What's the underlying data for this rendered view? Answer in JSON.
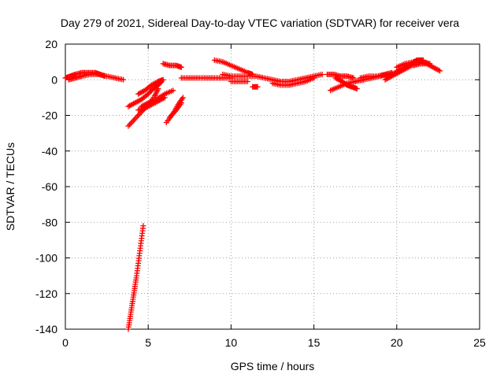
{
  "chart_data": {
    "type": "scatter",
    "title": "Day 279 of 2021, Sidereal Day-to-day VTEC variation (SDTVAR) for receiver vera",
    "xlabel": "GPS time / hours",
    "ylabel": "SDTVAR / TECUs",
    "xlim": [
      0,
      25
    ],
    "ylim": [
      -140,
      20
    ],
    "xticks": [
      0,
      5,
      10,
      15,
      20,
      25
    ],
    "yticks": [
      -140,
      -120,
      -100,
      -80,
      -60,
      -40,
      -20,
      0,
      20
    ],
    "grid": true,
    "marker": "plus",
    "color": "#ff0000",
    "series": [
      {
        "name": "seg1",
        "x": [
          0.0,
          0.3,
          0.6,
          1.0,
          1.4,
          1.8,
          2.1,
          2.4
        ],
        "y": [
          1,
          2,
          3,
          4,
          4,
          4,
          3,
          2
        ]
      },
      {
        "name": "seg2",
        "x": [
          0.2,
          0.6,
          1.0,
          1.5,
          2.0,
          2.5,
          3.0,
          3.5
        ],
        "y": [
          0,
          1,
          2,
          3,
          3,
          2,
          1,
          0
        ]
      },
      {
        "name": "seg3",
        "x": [
          3.8,
          4.2,
          4.6,
          5.0,
          5.4,
          5.6
        ],
        "y": [
          -26,
          -22,
          -18,
          -14,
          -9,
          -5
        ]
      },
      {
        "name": "seg4",
        "x": [
          3.8,
          4.2,
          4.6,
          5.0,
          5.3,
          5.6,
          5.8
        ],
        "y": [
          -15,
          -13,
          -11,
          -8,
          -5,
          -3,
          -1
        ]
      },
      {
        "name": "seg5",
        "x": [
          4.4,
          4.8,
          5.2,
          5.6,
          5.9
        ],
        "y": [
          -8,
          -6,
          -3,
          -1,
          0
        ]
      },
      {
        "name": "seg6",
        "x": [
          4.4,
          4.8,
          5.2,
          5.6,
          6.0
        ],
        "y": [
          -17,
          -16,
          -14,
          -12,
          -10
        ]
      },
      {
        "name": "seg7",
        "x": [
          4.6,
          5.0,
          5.5,
          6.0,
          6.5
        ],
        "y": [
          -15,
          -13,
          -11,
          -8,
          -6
        ]
      },
      {
        "name": "seg8",
        "x": [
          5.9,
          6.3,
          6.7,
          7.0
        ],
        "y": [
          9,
          8,
          8,
          7
        ]
      },
      {
        "name": "seg9",
        "x": [
          6.1,
          6.5,
          6.8,
          7.1
        ],
        "y": [
          -24,
          -19,
          -14,
          -10
        ]
      },
      {
        "name": "seg10",
        "x": [
          6.3,
          6.7,
          7.0
        ],
        "y": [
          -21,
          -17,
          -13
        ]
      },
      {
        "name": "seg11",
        "x": [
          7.0,
          7.5,
          8.0,
          8.5,
          9.0,
          9.5,
          10.0
        ],
        "y": [
          1,
          1,
          1,
          1,
          1,
          1,
          1
        ]
      },
      {
        "name": "seg12",
        "x": [
          9.0,
          9.5,
          10.0,
          10.5,
          11.0,
          11.3
        ],
        "y": [
          11,
          10,
          8,
          6,
          4,
          3
        ]
      },
      {
        "name": "seg13",
        "x": [
          9.5,
          10.0,
          10.5,
          11.0,
          11.5,
          12.0,
          12.5,
          13.0,
          13.5,
          14.0,
          14.5,
          15.0,
          15.5
        ],
        "y": [
          3,
          2,
          2,
          2,
          2,
          1,
          0,
          -1,
          -1,
          0,
          1,
          2,
          3
        ]
      },
      {
        "name": "seg14",
        "x": [
          10.0,
          10.5,
          11.0
        ],
        "y": [
          -1,
          -1,
          -1
        ]
      },
      {
        "name": "seg15",
        "x": [
          11.3,
          11.6
        ],
        "y": [
          -4,
          -4
        ]
      },
      {
        "name": "seg16",
        "x": [
          12.5,
          13.0,
          13.5,
          14.0,
          14.5,
          15.0
        ],
        "y": [
          -2,
          -3,
          -3,
          -2,
          -1,
          1
        ]
      },
      {
        "name": "seg17",
        "x": [
          15.8,
          16.2,
          16.6,
          17.0,
          17.4
        ],
        "y": [
          3,
          3,
          2,
          2,
          1
        ]
      },
      {
        "name": "seg18",
        "x": [
          16.0,
          16.5,
          17.0,
          17.5,
          18.0
        ],
        "y": [
          -6,
          -4,
          -2,
          -1,
          0
        ]
      },
      {
        "name": "seg19",
        "x": [
          16.3,
          16.7,
          17.0,
          17.3,
          17.6
        ],
        "y": [
          1,
          -1,
          -3,
          -4,
          -5
        ]
      },
      {
        "name": "seg20",
        "x": [
          17.5,
          18.0,
          18.5,
          19.0,
          19.4
        ],
        "y": [
          -1,
          0,
          1,
          2,
          3
        ]
      },
      {
        "name": "seg21",
        "x": [
          17.8,
          18.3,
          18.8,
          19.3,
          19.7
        ],
        "y": [
          1,
          2,
          2,
          3,
          4
        ]
      },
      {
        "name": "seg22",
        "x": [
          19.3,
          19.7,
          20.1,
          20.5,
          20.9
        ],
        "y": [
          0,
          2,
          4,
          6,
          8
        ]
      },
      {
        "name": "seg23",
        "x": [
          19.5,
          19.9,
          20.3,
          20.7,
          21.1
        ],
        "y": [
          2,
          4,
          6,
          8,
          10
        ]
      },
      {
        "name": "seg24",
        "x": [
          20.0,
          20.5,
          21.0,
          21.3,
          21.6
        ],
        "y": [
          7,
          9,
          10,
          11,
          11
        ]
      },
      {
        "name": "seg25",
        "x": [
          21.0,
          21.4,
          21.8,
          22.2,
          22.6
        ],
        "y": [
          8,
          9,
          9,
          7,
          5
        ]
      },
      {
        "name": "seg26",
        "x": [
          21.2,
          21.6,
          22.0
        ],
        "y": [
          11,
          10,
          9
        ]
      },
      {
        "name": "seg27",
        "x": [
          3.8,
          3.9,
          4.0,
          4.1,
          4.2,
          4.3,
          4.4,
          4.5,
          4.6,
          4.7
        ],
        "y": [
          -140,
          -134,
          -128,
          -122,
          -116,
          -110,
          -103,
          -96,
          -89,
          -82
        ]
      }
    ]
  }
}
